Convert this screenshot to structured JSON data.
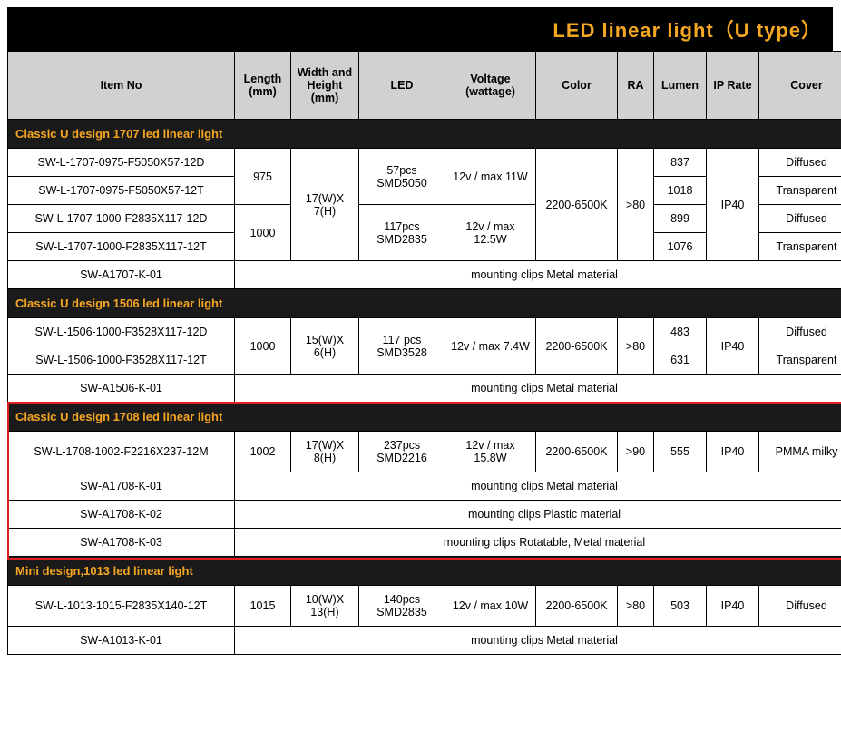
{
  "title": "LED linear light（U type）",
  "columns": [
    "Item No",
    "Length (mm)",
    "Width and Height (mm)",
    "LED",
    "Voltage (wattage)",
    "Color",
    "RA",
    "Lumen",
    "IP Rate",
    "Cover"
  ],
  "sec1": {
    "header": "Classic U design 1707 led linear light",
    "r1_item": "SW-L-1707-0975-F5050X57-12D",
    "r2_item": "SW-L-1707-0975-F5050X57-12T",
    "r3_item": "SW-L-1707-1000-F2835X117-12D",
    "r4_item": "SW-L-1707-1000-F2835X117-12T",
    "len_a": "975",
    "len_b": "1000",
    "wh": "17(W)X 7(H)",
    "led_a": "57pcs SMD5050",
    "led_b": "117pcs SMD2835",
    "volt_a": "12v / max 11W",
    "volt_b": "12v / max 12.5W",
    "color": "2200-6500K",
    "ra": ">80",
    "lum1": "837",
    "lum2": "1018",
    "lum3": "899",
    "lum4": "1076",
    "ip": "IP40",
    "cov1": "Diffused",
    "cov2": "Transparent",
    "cov3": "Diffused",
    "cov4": "Transparent",
    "acc_item": "SW-A1707-K-01",
    "acc_text": "mounting clips Metal material"
  },
  "sec2": {
    "header": "Classic U design 1506 led linear light",
    "r1_item": "SW-L-1506-1000-F3528X117-12D",
    "r2_item": "SW-L-1506-1000-F3528X117-12T",
    "len": "1000",
    "wh": "15(W)X 6(H)",
    "led": "117 pcs SMD3528",
    "volt": "12v / max 7.4W",
    "color": "2200-6500K",
    "ra": ">80",
    "lum1": "483",
    "lum2": "631",
    "ip": "IP40",
    "cov1": "Diffused",
    "cov2": "Transparent",
    "acc_item": "SW-A1506-K-01",
    "acc_text": "mounting clips Metal material"
  },
  "sec3": {
    "header": "Classic U design 1708 led linear light",
    "r1_item": "SW-L-1708-1002-F2216X237-12M",
    "len": "1002",
    "wh": "17(W)X 8(H)",
    "led": "237pcs SMD2216",
    "volt": "12v / max 15.8W",
    "color": "2200-6500K",
    "ra": ">90",
    "lum": "555",
    "ip": "IP40",
    "cov": "PMMA milky",
    "a1_item": "SW-A1708-K-01",
    "a1_text": "mounting clips Metal material",
    "a2_item": "SW-A1708-K-02",
    "a2_text": "mounting clips  Plastic material",
    "a3_item": "SW-A1708-K-03",
    "a3_text": "mounting clips  Rotatable, Metal material"
  },
  "sec4": {
    "header": "Mini design,1013 led linear light",
    "r1_item": "SW-L-1013-1015-F2835X140-12T",
    "len": "1015",
    "wh": "10(W)X 13(H)",
    "led": "140pcs SMD2835",
    "volt": "12v / max 10W",
    "color": "2200-6500K",
    "ra": ">80",
    "lum": "503",
    "ip": "IP40",
    "cov": "Diffused",
    "acc_item": "SW-A1013-K-01",
    "acc_text": "mounting clips Metal material"
  },
  "highlight_color": "#e02020"
}
